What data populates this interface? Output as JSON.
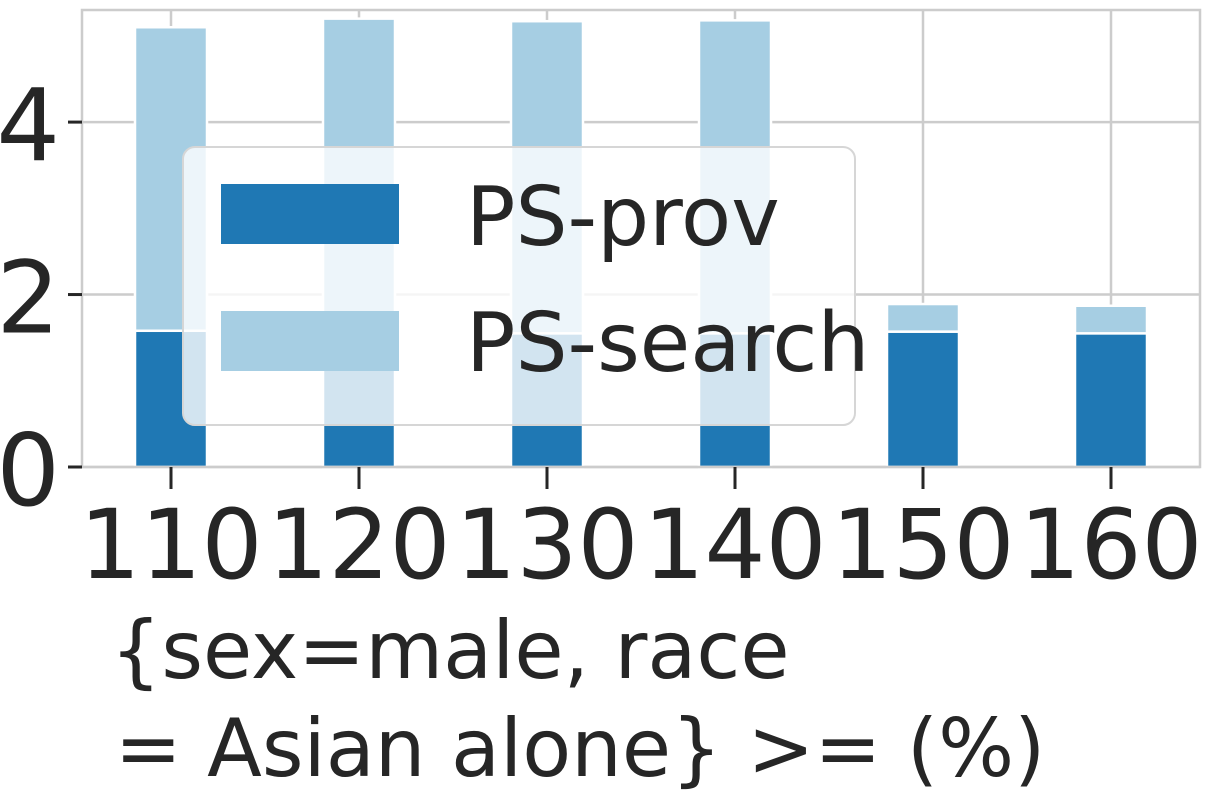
{
  "chart_data": {
    "type": "bar",
    "stacked": true,
    "categories": [
      "110",
      "120",
      "130",
      "140",
      "150",
      "160"
    ],
    "series": [
      {
        "name": "PS-prov",
        "values": [
          1.58,
          1.55,
          1.55,
          1.55,
          1.57,
          1.55
        ],
        "color": "#1f78b4"
      },
      {
        "name": "PS-search",
        "values": [
          3.52,
          3.65,
          3.62,
          3.63,
          0.32,
          0.32
        ],
        "color": "#a6cee3"
      }
    ],
    "xlabel_lines": [
      "{sex=male, race",
      "= Asian alone} >= (%)"
    ],
    "ylabel": "",
    "ylim": [
      0,
      5.3
    ],
    "yticks": [
      "0",
      "2",
      "4"
    ],
    "grid": true,
    "legend_position": "upper-center"
  }
}
